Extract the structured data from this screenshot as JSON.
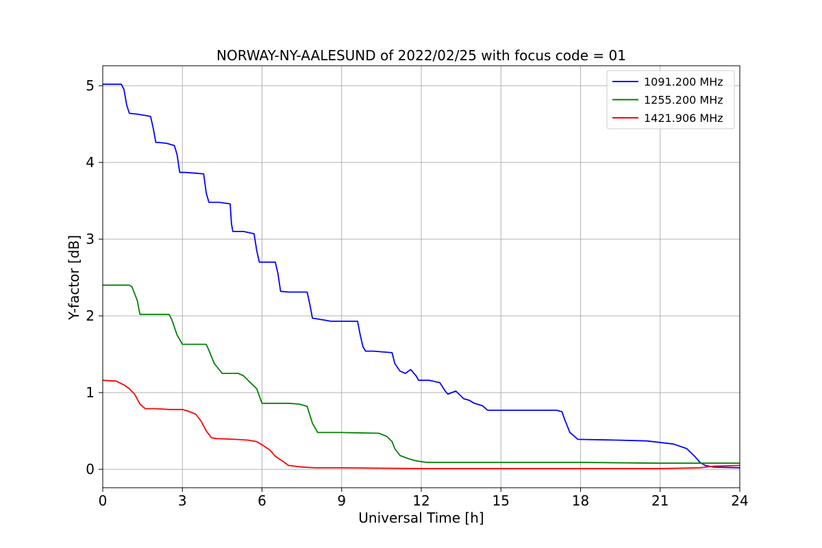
{
  "chart_data": {
    "type": "line",
    "title": "NORWAY-NY-AALESUND of 2022/02/25 with focus code = 01",
    "xlabel": "Universal Time [h]",
    "ylabel": "Y-factor [dB]",
    "xlim": [
      0,
      24
    ],
    "ylim": [
      -0.24,
      5.26
    ],
    "xticks": [
      0,
      3,
      6,
      9,
      12,
      15,
      18,
      21,
      24
    ],
    "yticks": [
      0,
      1,
      2,
      3,
      4,
      5
    ],
    "grid": true,
    "legend_position": "top-right",
    "series": [
      {
        "name": "1091.200 MHz",
        "color": "#0000ff",
        "x": [
          0,
          0.7,
          0.8,
          0.9,
          1.0,
          1.3,
          1.8,
          1.9,
          2.0,
          2.1,
          2.4,
          2.7,
          2.8,
          2.9,
          3.1,
          3.5,
          3.8,
          3.9,
          4.0,
          4.1,
          4.4,
          4.8,
          4.85,
          4.9,
          5.3,
          5.7,
          5.8,
          5.9,
          6.1,
          6.5,
          6.6,
          6.7,
          7.0,
          7.7,
          7.8,
          7.9,
          8.1,
          8.6,
          9.6,
          9.7,
          9.8,
          9.9,
          10.2,
          10.9,
          11.0,
          11.2,
          11.4,
          11.6,
          11.8,
          11.9,
          12.3,
          12.7,
          12.9,
          13.0,
          13.3,
          13.6,
          13.8,
          14.0,
          14.3,
          14.5,
          17.1,
          17.3,
          17.4,
          17.6,
          17.9,
          19.5,
          20.5,
          21.5,
          22.0,
          22.3,
          22.5,
          22.7,
          23.0,
          24.0
        ],
        "y": [
          5.02,
          5.02,
          4.95,
          4.75,
          4.64,
          4.63,
          4.6,
          4.45,
          4.26,
          4.26,
          4.25,
          4.22,
          4.1,
          3.87,
          3.87,
          3.86,
          3.85,
          3.6,
          3.48,
          3.48,
          3.48,
          3.46,
          3.2,
          3.1,
          3.1,
          3.07,
          2.85,
          2.7,
          2.7,
          2.7,
          2.55,
          2.32,
          2.31,
          2.31,
          2.15,
          1.97,
          1.96,
          1.93,
          1.93,
          1.75,
          1.6,
          1.54,
          1.54,
          1.52,
          1.38,
          1.28,
          1.25,
          1.3,
          1.22,
          1.16,
          1.16,
          1.13,
          1.02,
          0.98,
          1.02,
          0.92,
          0.9,
          0.86,
          0.83,
          0.77,
          0.77,
          0.75,
          0.65,
          0.48,
          0.39,
          0.38,
          0.37,
          0.33,
          0.27,
          0.17,
          0.09,
          0.05,
          0.03,
          0.02
        ]
      },
      {
        "name": "1255.200 MHz",
        "color": "#008000",
        "x": [
          0,
          1.0,
          1.1,
          1.3,
          1.4,
          1.7,
          2.5,
          2.6,
          2.8,
          3.0,
          3.9,
          4.0,
          4.2,
          4.5,
          5.1,
          5.3,
          5.5,
          5.8,
          6.0,
          7.0,
          7.4,
          7.7,
          7.9,
          8.1,
          9.0,
          10.4,
          10.7,
          10.9,
          11.0,
          11.2,
          11.5,
          11.8,
          12.2,
          15.0,
          18.0,
          21.0,
          24.0
        ],
        "y": [
          2.4,
          2.4,
          2.38,
          2.2,
          2.02,
          2.02,
          2.02,
          1.95,
          1.75,
          1.63,
          1.63,
          1.55,
          1.38,
          1.25,
          1.25,
          1.22,
          1.15,
          1.05,
          0.86,
          0.86,
          0.85,
          0.82,
          0.6,
          0.48,
          0.48,
          0.47,
          0.43,
          0.36,
          0.27,
          0.18,
          0.14,
          0.11,
          0.09,
          0.09,
          0.09,
          0.08,
          0.08
        ]
      },
      {
        "name": "1421.906 MHz",
        "color": "#ff0000",
        "x": [
          0,
          0.5,
          0.8,
          1.0,
          1.2,
          1.4,
          1.6,
          2.0,
          2.5,
          3.0,
          3.2,
          3.5,
          3.7,
          3.9,
          4.1,
          4.3,
          5.0,
          5.5,
          5.8,
          6.0,
          6.3,
          6.5,
          6.8,
          7.0,
          7.5,
          8.0,
          8.5,
          9.0,
          12.0,
          15.0,
          18.0,
          21.0,
          22.5,
          23.0,
          24.0
        ],
        "y": [
          1.16,
          1.15,
          1.1,
          1.05,
          0.98,
          0.85,
          0.79,
          0.79,
          0.78,
          0.78,
          0.76,
          0.72,
          0.63,
          0.5,
          0.41,
          0.4,
          0.39,
          0.38,
          0.36,
          0.32,
          0.25,
          0.17,
          0.1,
          0.05,
          0.03,
          0.02,
          0.02,
          0.02,
          0.01,
          0.01,
          0.01,
          0.01,
          0.02,
          0.04,
          0.05
        ]
      }
    ]
  }
}
